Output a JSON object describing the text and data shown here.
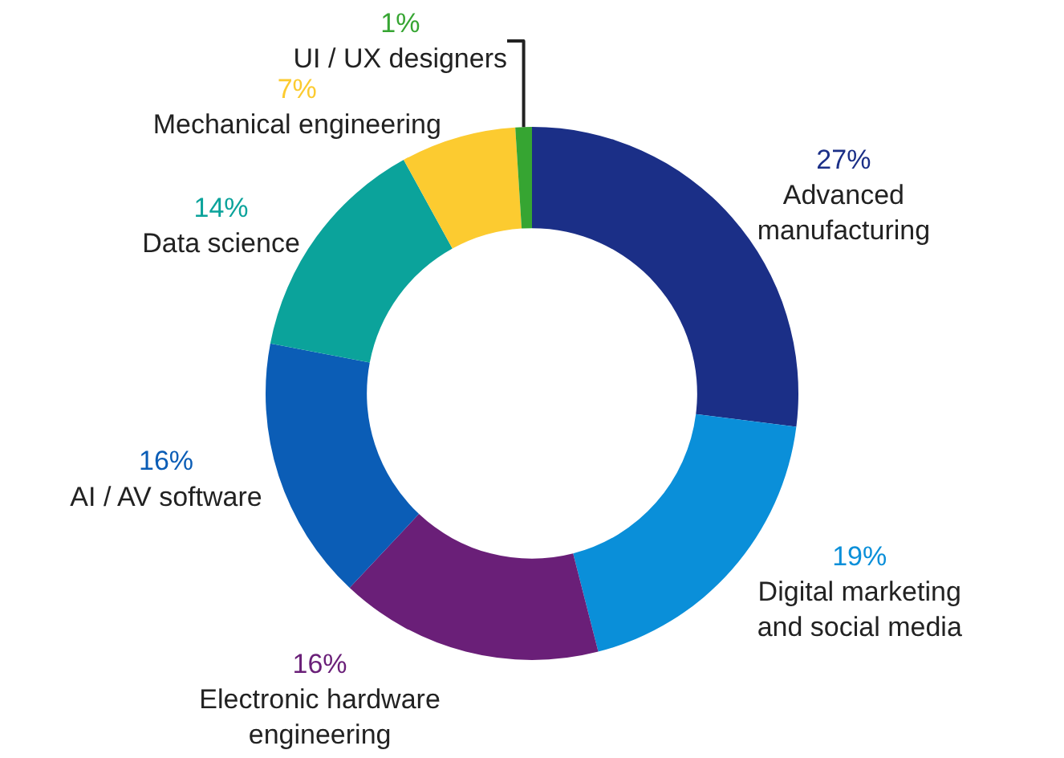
{
  "chart_data": {
    "type": "donut",
    "categories": [
      "Advanced\nmanufacturing",
      "Digital marketing\nand social media",
      "Electronic hardware\nengineering",
      "AI / AV software",
      "Data science",
      "Mechanical engineering",
      "UI / UX designers"
    ],
    "values": [
      27,
      19,
      16,
      16,
      14,
      7,
      1
    ],
    "value_labels": [
      "27%",
      "19%",
      "16%",
      "16%",
      "14%",
      "7%",
      "1%"
    ],
    "colors": [
      "#1b2f87",
      "#0a8fd9",
      "#6a1f78",
      "#0b5db6",
      "#0ba39b",
      "#fccb30",
      "#36a532"
    ],
    "legend": false
  }
}
